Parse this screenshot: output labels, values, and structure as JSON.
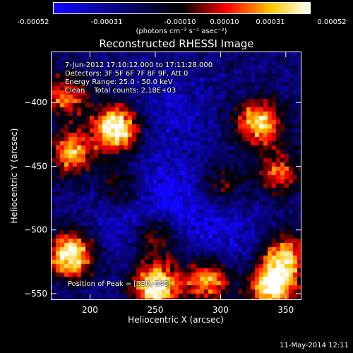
{
  "colorbar": {
    "tick_labels": [
      "-0.00052",
      "-0.00031",
      "-0.00010",
      "0.00010",
      "0.00031",
      "0.00052"
    ],
    "unit_label": "(photons cm⁻² s⁻¹ asec⁻²)",
    "range": [
      -0.00052,
      0.00052
    ],
    "colors": {
      "low": "#0000ff",
      "mid": "#000000",
      "red": "#ff1a00",
      "orange": "#ff8c00",
      "high": "#ffffff"
    }
  },
  "info": {
    "line1": "7-Jun-2012 17:10:12.000 to 17:11:28.000",
    "line2": "Detectors: 3F 5F 6F 7F 8F 9F, Att 0",
    "line3": "Energy Range: 25.0 - 50.0 keV",
    "line4": "Clean    Total counts: 2.18E+03",
    "peak": "Position of Peak = [330,-545]"
  },
  "footer": {
    "timestamp": "11-May-2014 12:11"
  },
  "chart_data": {
    "type": "heatmap",
    "title": "Reconstructed RHESSI Image",
    "xlabel": "Heliocentric X (arcsec)",
    "ylabel": "Heliocentric Y (arcsec)",
    "xlim": [
      170,
      362
    ],
    "ylim": [
      -555,
      -360
    ],
    "x_ticks": [
      200,
      250,
      300,
      350
    ],
    "y_ticks": [
      -400,
      -450,
      -500,
      -550
    ],
    "x_tick_labels": [
      "200",
      "250",
      "300",
      "350"
    ],
    "y_tick_labels": [
      "−400",
      "−450",
      "−500",
      "−550"
    ],
    "peak_position": [
      330,
      -545
    ],
    "bright_sources": [
      {
        "x": 220,
        "y": -420,
        "level": 1.0
      },
      {
        "x": 250,
        "y": -545,
        "level": 1.0
      },
      {
        "x": 185,
        "y": -520,
        "level": 0.95
      },
      {
        "x": 340,
        "y": -545,
        "level": 0.95
      },
      {
        "x": 330,
        "y": -415,
        "level": 0.8
      },
      {
        "x": 185,
        "y": -440,
        "level": 0.7
      },
      {
        "x": 290,
        "y": -540,
        "level": 0.75
      },
      {
        "x": 350,
        "y": -520,
        "level": 0.7
      },
      {
        "x": 250,
        "y": -505,
        "level": 0.6
      },
      {
        "x": 180,
        "y": -395,
        "level": 0.6
      },
      {
        "x": 345,
        "y": -455,
        "level": 0.55
      },
      {
        "x": 225,
        "y": -470,
        "level": 0.45
      },
      {
        "x": 300,
        "y": -465,
        "level": 0.4
      }
    ],
    "dim_regions": [
      {
        "x": 235,
        "y": -490,
        "level": -0.9
      },
      {
        "x": 300,
        "y": -505,
        "level": -0.6
      },
      {
        "x": 270,
        "y": -470,
        "level": -0.6
      },
      {
        "x": 260,
        "y": -410,
        "level": -0.5
      }
    ]
  }
}
